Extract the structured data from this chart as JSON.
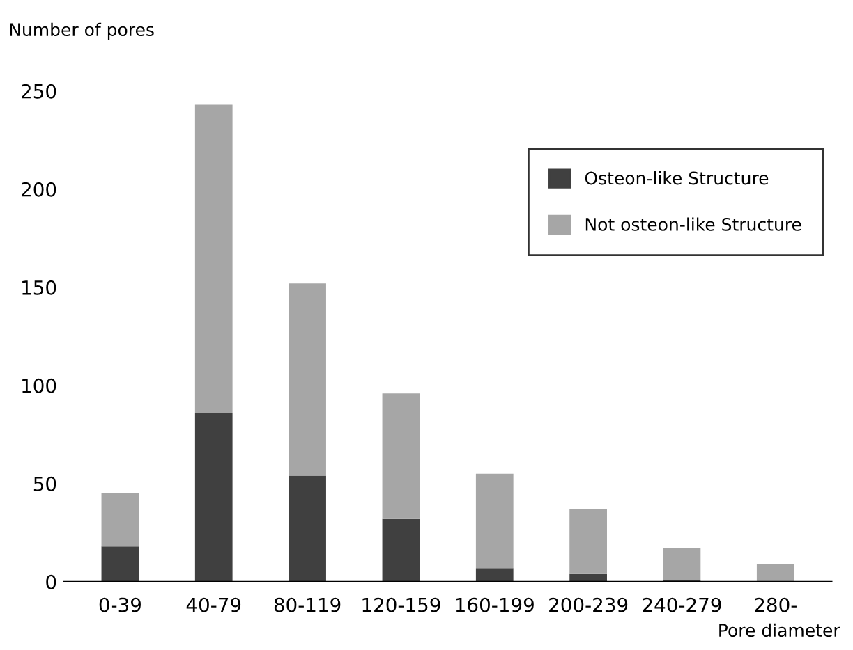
{
  "chart_data": {
    "type": "bar",
    "stacked": true,
    "ylabel": "Number of pores",
    "xlabel": "Pore diameter",
    "categories": [
      "0-39",
      "40-79",
      "80-119",
      "120-159",
      "160-199",
      "200-239",
      "240-279",
      "280-"
    ],
    "series": [
      {
        "name": "Osteon-like Structure",
        "color": "#404040",
        "values": [
          18,
          86,
          54,
          32,
          7,
          4,
          1,
          0
        ]
      },
      {
        "name": "Not osteon-like Structure",
        "color": "#a6a6a6",
        "values": [
          27,
          157,
          98,
          64,
          48,
          33,
          16,
          9
        ]
      }
    ],
    "ylim": [
      0,
      250
    ],
    "yticks": [
      0,
      50,
      100,
      150,
      200,
      250
    ],
    "grid": false,
    "legend": "top right"
  }
}
